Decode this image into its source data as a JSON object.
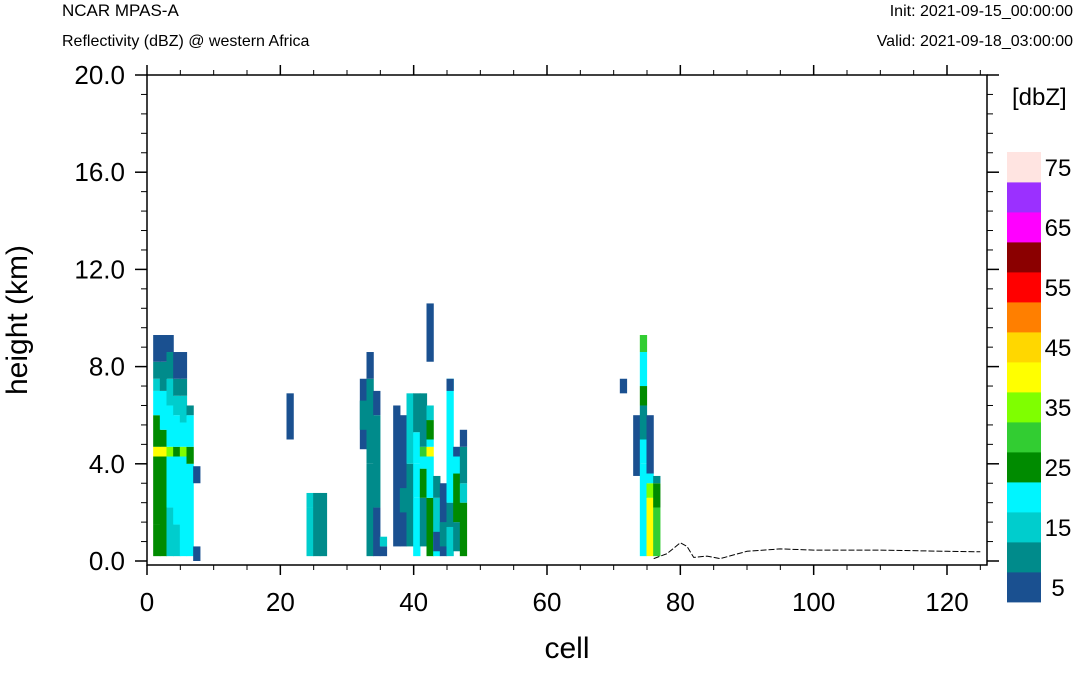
{
  "header": {
    "model": "NCAR MPAS-A",
    "field": "Reflectivity (dBZ) @ western Africa",
    "init": "Init: 2021-09-15_00:00:00",
    "valid": "Valid: 2021-09-18_03:00:00"
  },
  "chart_data": {
    "type": "heatmap",
    "title": "Reflectivity (dBZ) @ western Africa",
    "xlabel": "cell",
    "ylabel": "height (km)",
    "xlim": [
      0,
      126
    ],
    "ylim": [
      0,
      20
    ],
    "x_ticks": [
      "0",
      "20",
      "40",
      "60",
      "80",
      "100",
      "120"
    ],
    "x_tick_values": [
      0,
      20,
      40,
      60,
      80,
      100,
      120
    ],
    "y_ticks": [
      "0.0",
      "4.0",
      "8.0",
      "12.0",
      "16.0",
      "20.0"
    ],
    "y_tick_values": [
      0,
      4,
      8,
      12,
      16,
      20
    ],
    "colorbar": {
      "label": "[dbZ]",
      "levels": [
        5,
        10,
        15,
        20,
        25,
        30,
        35,
        40,
        45,
        50,
        55,
        60,
        65,
        70,
        75
      ],
      "tick_labels": [
        "5",
        "15",
        "25",
        "35",
        "45",
        "55",
        "65",
        "75"
      ],
      "colors": [
        "#1a5090",
        "#008b8b",
        "#00cdcd",
        "#00f5ff",
        "#008b00",
        "#32cd32",
        "#7fff00",
        "#ffff00",
        "#ffd700",
        "#ff7f00",
        "#ff0000",
        "#8b0000",
        "#ff00ff",
        "#9b30ff",
        "#ffe4e1"
      ]
    },
    "cells": [
      {
        "x": 1,
        "y0": 0.2,
        "y1": 1.5,
        "v": 25
      },
      {
        "x": 1,
        "y0": 1.5,
        "y1": 4.3,
        "v": 25
      },
      {
        "x": 1,
        "y0": 4.3,
        "y1": 4.7,
        "v": 40
      },
      {
        "x": 1,
        "y0": 4.7,
        "y1": 6.0,
        "v": 25
      },
      {
        "x": 1,
        "y0": 6.0,
        "y1": 7.0,
        "v": 20
      },
      {
        "x": 1,
        "y0": 7.0,
        "y1": 7.5,
        "v": 15
      },
      {
        "x": 1,
        "y0": 7.5,
        "y1": 8.2,
        "v": 10
      },
      {
        "x": 1,
        "y0": 8.2,
        "y1": 9.3,
        "v": 5
      },
      {
        "x": 2,
        "y0": 0.2,
        "y1": 4.3,
        "v": 25
      },
      {
        "x": 2,
        "y0": 4.3,
        "y1": 4.7,
        "v": 40
      },
      {
        "x": 2,
        "y0": 4.7,
        "y1": 5.4,
        "v": 25
      },
      {
        "x": 2,
        "y0": 5.4,
        "y1": 7.0,
        "v": 20
      },
      {
        "x": 2,
        "y0": 7.0,
        "y1": 8.2,
        "v": 10
      },
      {
        "x": 2,
        "y0": 8.2,
        "y1": 9.3,
        "v": 5
      },
      {
        "x": 3,
        "y0": 0.2,
        "y1": 2.2,
        "v": 15
      },
      {
        "x": 3,
        "y0": 2.2,
        "y1": 4.3,
        "v": 20
      },
      {
        "x": 3,
        "y0": 4.3,
        "y1": 4.7,
        "v": 35
      },
      {
        "x": 3,
        "y0": 4.7,
        "y1": 6.4,
        "v": 20
      },
      {
        "x": 3,
        "y0": 6.4,
        "y1": 7.5,
        "v": 15
      },
      {
        "x": 3,
        "y0": 7.5,
        "y1": 8.6,
        "v": 10
      },
      {
        "x": 3,
        "y0": 8.6,
        "y1": 9.3,
        "v": 5
      },
      {
        "x": 4,
        "y0": 0.2,
        "y1": 1.5,
        "v": 15
      },
      {
        "x": 4,
        "y0": 1.5,
        "y1": 4.3,
        "v": 20
      },
      {
        "x": 4,
        "y0": 4.3,
        "y1": 4.7,
        "v": 25
      },
      {
        "x": 4,
        "y0": 4.7,
        "y1": 6.0,
        "v": 20
      },
      {
        "x": 4,
        "y0": 6.0,
        "y1": 6.8,
        "v": 15
      },
      {
        "x": 4,
        "y0": 6.8,
        "y1": 7.5,
        "v": 10
      },
      {
        "x": 4,
        "y0": 7.5,
        "y1": 8.6,
        "v": 5
      },
      {
        "x": 5,
        "y0": 0.2,
        "y1": 4.3,
        "v": 20
      },
      {
        "x": 5,
        "y0": 4.3,
        "y1": 4.7,
        "v": 35
      },
      {
        "x": 5,
        "y0": 4.7,
        "y1": 5.7,
        "v": 20
      },
      {
        "x": 5,
        "y0": 5.7,
        "y1": 6.8,
        "v": 15
      },
      {
        "x": 5,
        "y0": 6.8,
        "y1": 7.5,
        "v": 10
      },
      {
        "x": 5,
        "y0": 7.5,
        "y1": 8.6,
        "v": 5
      },
      {
        "x": 6,
        "y0": 0.2,
        "y1": 4.0,
        "v": 20
      },
      {
        "x": 6,
        "y0": 4.0,
        "y1": 4.7,
        "v": 25
      },
      {
        "x": 6,
        "y0": 4.7,
        "y1": 6.0,
        "v": 20
      },
      {
        "x": 6,
        "y0": 6.0,
        "y1": 6.4,
        "v": 10
      },
      {
        "x": 7,
        "y0": 0,
        "y1": 0.6,
        "v": 5
      },
      {
        "x": 7,
        "y0": 3.2,
        "y1": 3.9,
        "v": 5
      },
      {
        "x": 21,
        "y0": 5.0,
        "y1": 6.9,
        "v": 5
      },
      {
        "x": 24,
        "y0": 0.2,
        "y1": 2.2,
        "v": 15
      },
      {
        "x": 24,
        "y0": 2.2,
        "y1": 2.8,
        "v": 15
      },
      {
        "x": 25,
        "y0": 0.2,
        "y1": 2.8,
        "v": 10
      },
      {
        "x": 26,
        "y0": 0.2,
        "y1": 2.8,
        "v": 10
      },
      {
        "x": 32,
        "y0": 4.6,
        "y1": 7.5,
        "v": 5
      },
      {
        "x": 32,
        "y0": 5.4,
        "y1": 6.6,
        "v": 10
      },
      {
        "x": 33,
        "y0": 0.2,
        "y1": 4.0,
        "v": 10
      },
      {
        "x": 33,
        "y0": 4.0,
        "y1": 7.5,
        "v": 10
      },
      {
        "x": 33,
        "y0": 7.5,
        "y1": 8.6,
        "v": 5
      },
      {
        "x": 34,
        "y0": 0.2,
        "y1": 2.2,
        "v": 5
      },
      {
        "x": 34,
        "y0": 2.2,
        "y1": 6.0,
        "v": 10
      },
      {
        "x": 34,
        "y0": 6.0,
        "y1": 7.0,
        "v": 5
      },
      {
        "x": 35,
        "y0": 0.2,
        "y1": 0.6,
        "v": 5
      },
      {
        "x": 35,
        "y0": 0.6,
        "y1": 1.0,
        "v": 15
      },
      {
        "x": 37,
        "y0": 0.6,
        "y1": 6.4,
        "v": 5
      },
      {
        "x": 38,
        "y0": 0.6,
        "y1": 6.0,
        "v": 5
      },
      {
        "x": 38,
        "y0": 2.0,
        "y1": 3.0,
        "v": 10
      },
      {
        "x": 39,
        "y0": 0.6,
        "y1": 4.0,
        "v": 10
      },
      {
        "x": 39,
        "y0": 4.0,
        "y1": 6.9,
        "v": 15
      },
      {
        "x": 40,
        "y0": 0.2,
        "y1": 2.6,
        "v": 20
      },
      {
        "x": 40,
        "y0": 2.6,
        "y1": 4.0,
        "v": 20
      },
      {
        "x": 40,
        "y0": 4.0,
        "y1": 5.3,
        "v": 20
      },
      {
        "x": 40,
        "y0": 5.3,
        "y1": 6.9,
        "v": 10
      },
      {
        "x": 41,
        "y0": 0.6,
        "y1": 2.6,
        "v": 10
      },
      {
        "x": 41,
        "y0": 2.6,
        "y1": 3.8,
        "v": 25
      },
      {
        "x": 41,
        "y0": 3.8,
        "y1": 4.3,
        "v": 20
      },
      {
        "x": 41,
        "y0": 4.3,
        "y1": 4.7,
        "v": 30
      },
      {
        "x": 41,
        "y0": 4.7,
        "y1": 6.9,
        "v": 10
      },
      {
        "x": 42,
        "y0": 0.2,
        "y1": 2.6,
        "v": 25
      },
      {
        "x": 42,
        "y0": 2.6,
        "y1": 4.3,
        "v": 20
      },
      {
        "x": 42,
        "y0": 4.3,
        "y1": 4.7,
        "v": 40
      },
      {
        "x": 42,
        "y0": 4.7,
        "y1": 5.0,
        "v": 20
      },
      {
        "x": 42,
        "y0": 5.0,
        "y1": 5.8,
        "v": 25
      },
      {
        "x": 42,
        "y0": 5.8,
        "y1": 6.4,
        "v": 15
      },
      {
        "x": 42,
        "y0": 8.2,
        "y1": 10.6,
        "v": 5
      },
      {
        "x": 43,
        "y0": 0.2,
        "y1": 1.0,
        "v": 20
      },
      {
        "x": 43,
        "y0": 1.0,
        "y1": 2.6,
        "v": 15
      },
      {
        "x": 43,
        "y0": 2.6,
        "y1": 3.5,
        "v": 10
      },
      {
        "x": 43,
        "y0": 0.4,
        "y1": 1.2,
        "v": 5
      },
      {
        "x": 44,
        "y0": 0.2,
        "y1": 3.2,
        "v": 5
      },
      {
        "x": 44,
        "y0": 0.6,
        "y1": 1.6,
        "v": 10
      },
      {
        "x": 45,
        "y0": 0.2,
        "y1": 1.4,
        "v": 15
      },
      {
        "x": 45,
        "y0": 1.4,
        "y1": 2.4,
        "v": 10
      },
      {
        "x": 45,
        "y0": 2.4,
        "y1": 4.3,
        "v": 20
      },
      {
        "x": 45,
        "y0": 4.3,
        "y1": 7.5,
        "v": 20
      },
      {
        "x": 45,
        "y0": 7.0,
        "y1": 7.5,
        "v": 5
      },
      {
        "x": 46,
        "y0": 0.4,
        "y1": 1.6,
        "v": 10
      },
      {
        "x": 46,
        "y0": 1.6,
        "y1": 3.6,
        "v": 25
      },
      {
        "x": 46,
        "y0": 3.6,
        "y1": 4.3,
        "v": 20
      },
      {
        "x": 46,
        "y0": 4.3,
        "y1": 4.7,
        "v": 5
      },
      {
        "x": 47,
        "y0": 0.2,
        "y1": 2.4,
        "v": 25
      },
      {
        "x": 47,
        "y0": 2.4,
        "y1": 3.2,
        "v": 15
      },
      {
        "x": 47,
        "y0": 3.2,
        "y1": 4.7,
        "v": 10
      },
      {
        "x": 47,
        "y0": 4.7,
        "y1": 5.4,
        "v": 5
      },
      {
        "x": 71,
        "y0": 6.9,
        "y1": 7.5,
        "v": 5
      },
      {
        "x": 73,
        "y0": 3.5,
        "y1": 6.0,
        "v": 5
      },
      {
        "x": 74,
        "y0": 0.2,
        "y1": 4.0,
        "v": 20
      },
      {
        "x": 74,
        "y0": 4.0,
        "y1": 5.0,
        "v": 20
      },
      {
        "x": 74,
        "y0": 5.0,
        "y1": 6.4,
        "v": 10
      },
      {
        "x": 74,
        "y0": 6.4,
        "y1": 7.2,
        "v": 25
      },
      {
        "x": 74,
        "y0": 7.2,
        "y1": 8.6,
        "v": 20
      },
      {
        "x": 74,
        "y0": 8.6,
        "y1": 9.3,
        "v": 30
      },
      {
        "x": 75,
        "y0": 0.2,
        "y1": 2.6,
        "v": 40
      },
      {
        "x": 75,
        "y0": 2.6,
        "y1": 3.2,
        "v": 35
      },
      {
        "x": 75,
        "y0": 3.2,
        "y1": 3.6,
        "v": 20
      },
      {
        "x": 75,
        "y0": 3.6,
        "y1": 6.0,
        "v": 5
      },
      {
        "x": 76,
        "y0": 0.2,
        "y1": 2.2,
        "v": 30
      },
      {
        "x": 76,
        "y0": 2.2,
        "y1": 3.2,
        "v": 25
      },
      {
        "x": 76,
        "y0": 3.2,
        "y1": 3.5,
        "v": 10
      }
    ],
    "terrain": [
      [
        76,
        0.1
      ],
      [
        78,
        0.3
      ],
      [
        80,
        0.75
      ],
      [
        81,
        0.6
      ],
      [
        82,
        0.15
      ],
      [
        84,
        0.2
      ],
      [
        86,
        0.1
      ],
      [
        88,
        0.25
      ],
      [
        90,
        0.4
      ],
      [
        95,
        0.5
      ],
      [
        100,
        0.45
      ],
      [
        110,
        0.45
      ],
      [
        120,
        0.4
      ],
      [
        125,
        0.38
      ]
    ]
  }
}
